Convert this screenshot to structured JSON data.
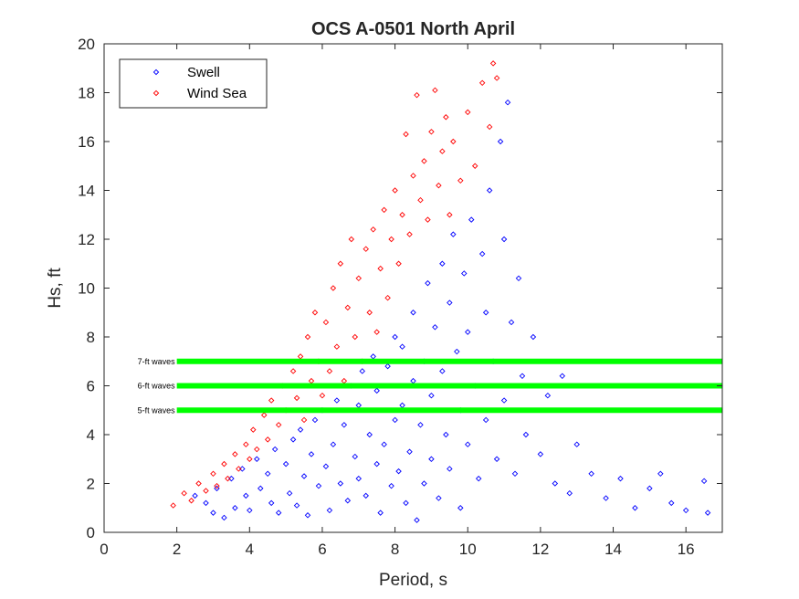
{
  "chart_data": {
    "type": "scatter",
    "title": "OCS A-0501 North April",
    "xlabel": "Period, s",
    "ylabel": "Hs, ft",
    "xlim": [
      0,
      17
    ],
    "ylim": [
      0,
      20
    ],
    "xticks": [
      "0",
      "2",
      "4",
      "6",
      "8",
      "10",
      "12",
      "14",
      "16"
    ],
    "yticks": [
      "0",
      "2",
      "4",
      "6",
      "8",
      "10",
      "12",
      "14",
      "16",
      "18",
      "20"
    ],
    "grid": false,
    "legend_position": "top-left",
    "marker": "diamond",
    "series": [
      {
        "name": "Swell",
        "color": "#0000ff",
        "points": [
          [
            2.5,
            1.5
          ],
          [
            2.8,
            1.2
          ],
          [
            3.0,
            0.8
          ],
          [
            3.1,
            1.8
          ],
          [
            3.3,
            0.6
          ],
          [
            3.5,
            2.2
          ],
          [
            3.6,
            1.0
          ],
          [
            3.8,
            2.6
          ],
          [
            3.9,
            1.5
          ],
          [
            4.0,
            0.9
          ],
          [
            4.2,
            3.0
          ],
          [
            4.3,
            1.8
          ],
          [
            4.5,
            2.4
          ],
          [
            4.6,
            1.2
          ],
          [
            4.7,
            3.4
          ],
          [
            4.8,
            0.8
          ],
          [
            5.0,
            2.8
          ],
          [
            5.1,
            1.6
          ],
          [
            5.2,
            3.8
          ],
          [
            5.3,
            1.1
          ],
          [
            5.4,
            4.2
          ],
          [
            5.5,
            2.3
          ],
          [
            5.6,
            0.7
          ],
          [
            5.7,
            3.2
          ],
          [
            5.8,
            4.6
          ],
          [
            5.9,
            1.9
          ],
          [
            6.0,
            5.0
          ],
          [
            6.1,
            2.7
          ],
          [
            6.2,
            0.9
          ],
          [
            6.3,
            3.6
          ],
          [
            6.4,
            5.4
          ],
          [
            6.5,
            2.0
          ],
          [
            6.6,
            4.4
          ],
          [
            6.7,
            1.3
          ],
          [
            6.8,
            6.0
          ],
          [
            6.9,
            3.1
          ],
          [
            7.0,
            5.2
          ],
          [
            7.0,
            2.2
          ],
          [
            7.1,
            6.6
          ],
          [
            7.2,
            1.5
          ],
          [
            7.3,
            4.0
          ],
          [
            7.4,
            7.2
          ],
          [
            7.5,
            2.8
          ],
          [
            7.5,
            5.8
          ],
          [
            7.6,
            0.8
          ],
          [
            7.7,
            3.6
          ],
          [
            7.8,
            6.8
          ],
          [
            7.9,
            1.9
          ],
          [
            8.0,
            4.6
          ],
          [
            8.0,
            8.0
          ],
          [
            8.1,
            2.5
          ],
          [
            8.2,
            7.6
          ],
          [
            8.2,
            5.2
          ],
          [
            8.3,
            1.2
          ],
          [
            8.4,
            3.3
          ],
          [
            8.5,
            9.0
          ],
          [
            8.5,
            6.2
          ],
          [
            8.6,
            0.5
          ],
          [
            8.7,
            4.4
          ],
          [
            8.8,
            7.0
          ],
          [
            8.8,
            2.0
          ],
          [
            8.9,
            10.2
          ],
          [
            9.0,
            5.6
          ],
          [
            9.0,
            3.0
          ],
          [
            9.1,
            8.4
          ],
          [
            9.2,
            1.4
          ],
          [
            9.3,
            11.0
          ],
          [
            9.3,
            6.6
          ],
          [
            9.4,
            4.0
          ],
          [
            9.5,
            9.4
          ],
          [
            9.5,
            2.6
          ],
          [
            9.6,
            12.2
          ],
          [
            9.7,
            7.4
          ],
          [
            9.8,
            5.0
          ],
          [
            9.8,
            1.0
          ],
          [
            9.9,
            10.6
          ],
          [
            10.0,
            3.6
          ],
          [
            10.0,
            8.2
          ],
          [
            10.1,
            12.8
          ],
          [
            10.2,
            6.0
          ],
          [
            10.3,
            2.2
          ],
          [
            10.4,
            11.4
          ],
          [
            10.5,
            4.6
          ],
          [
            10.5,
            9.0
          ],
          [
            10.6,
            14.0
          ],
          [
            10.7,
            7.0
          ],
          [
            10.8,
            3.0
          ],
          [
            10.9,
            16.0
          ],
          [
            11.0,
            12.0
          ],
          [
            11.0,
            5.4
          ],
          [
            11.1,
            17.6
          ],
          [
            11.2,
            8.6
          ],
          [
            11.3,
            2.4
          ],
          [
            11.4,
            10.4
          ],
          [
            11.5,
            6.4
          ],
          [
            11.6,
            4.0
          ],
          [
            11.8,
            8.0
          ],
          [
            12.0,
            3.2
          ],
          [
            12.2,
            5.6
          ],
          [
            12.4,
            2.0
          ],
          [
            12.6,
            6.4
          ],
          [
            12.8,
            1.6
          ],
          [
            13.0,
            3.6
          ],
          [
            13.4,
            2.4
          ],
          [
            13.8,
            1.4
          ],
          [
            14.2,
            2.2
          ],
          [
            14.6,
            1.0
          ],
          [
            15.0,
            1.8
          ],
          [
            15.3,
            2.4
          ],
          [
            15.6,
            1.2
          ],
          [
            16.0,
            0.9
          ],
          [
            16.5,
            2.1
          ],
          [
            16.6,
            0.8
          ]
        ]
      },
      {
        "name": "Wind Sea",
        "color": "#ff0000",
        "points": [
          [
            1.9,
            1.1
          ],
          [
            2.2,
            1.6
          ],
          [
            2.4,
            1.3
          ],
          [
            2.6,
            2.0
          ],
          [
            2.8,
            1.7
          ],
          [
            3.0,
            2.4
          ],
          [
            3.1,
            1.9
          ],
          [
            3.3,
            2.8
          ],
          [
            3.4,
            2.2
          ],
          [
            3.6,
            3.2
          ],
          [
            3.7,
            2.6
          ],
          [
            3.9,
            3.6
          ],
          [
            4.0,
            3.0
          ],
          [
            4.1,
            4.2
          ],
          [
            4.2,
            3.4
          ],
          [
            4.4,
            4.8
          ],
          [
            4.5,
            3.8
          ],
          [
            4.6,
            5.4
          ],
          [
            4.8,
            4.4
          ],
          [
            4.9,
            6.0
          ],
          [
            5.0,
            5.0
          ],
          [
            5.2,
            6.6
          ],
          [
            5.3,
            5.5
          ],
          [
            5.4,
            7.2
          ],
          [
            5.5,
            4.6
          ],
          [
            5.6,
            8.0
          ],
          [
            5.7,
            6.2
          ],
          [
            5.8,
            9.0
          ],
          [
            5.9,
            7.0
          ],
          [
            6.0,
            5.6
          ],
          [
            6.1,
            8.6
          ],
          [
            6.2,
            6.6
          ],
          [
            6.3,
            10.0
          ],
          [
            6.4,
            7.6
          ],
          [
            6.5,
            11.0
          ],
          [
            6.6,
            6.2
          ],
          [
            6.7,
            9.2
          ],
          [
            6.8,
            12.0
          ],
          [
            6.9,
            8.0
          ],
          [
            7.0,
            10.4
          ],
          [
            7.1,
            7.0
          ],
          [
            7.2,
            11.6
          ],
          [
            7.3,
            9.0
          ],
          [
            7.4,
            12.4
          ],
          [
            7.5,
            8.2
          ],
          [
            7.6,
            10.8
          ],
          [
            7.7,
            13.2
          ],
          [
            7.8,
            9.6
          ],
          [
            7.9,
            12.0
          ],
          [
            8.0,
            14.0
          ],
          [
            8.1,
            11.0
          ],
          [
            8.2,
            13.0
          ],
          [
            8.3,
            16.3
          ],
          [
            8.4,
            12.2
          ],
          [
            8.5,
            14.6
          ],
          [
            8.6,
            17.9
          ],
          [
            8.7,
            13.6
          ],
          [
            8.8,
            15.2
          ],
          [
            8.9,
            12.8
          ],
          [
            9.0,
            16.4
          ],
          [
            9.1,
            18.1
          ],
          [
            9.2,
            14.2
          ],
          [
            9.3,
            15.6
          ],
          [
            9.4,
            17.0
          ],
          [
            9.5,
            13.0
          ],
          [
            9.6,
            16.0
          ],
          [
            9.8,
            14.4
          ],
          [
            10.0,
            17.2
          ],
          [
            10.2,
            15.0
          ],
          [
            10.4,
            18.4
          ],
          [
            10.6,
            16.6
          ],
          [
            10.7,
            19.2
          ],
          [
            10.8,
            18.6
          ]
        ]
      }
    ],
    "reference_lines": [
      {
        "y": 5,
        "label": "5-ft waves",
        "color": "#00ff00"
      },
      {
        "y": 6,
        "label": "6-ft waves",
        "color": "#00ff00"
      },
      {
        "y": 7,
        "label": "7-ft waves",
        "color": "#00ff00"
      }
    ],
    "reference_lines_x_start": 2
  }
}
